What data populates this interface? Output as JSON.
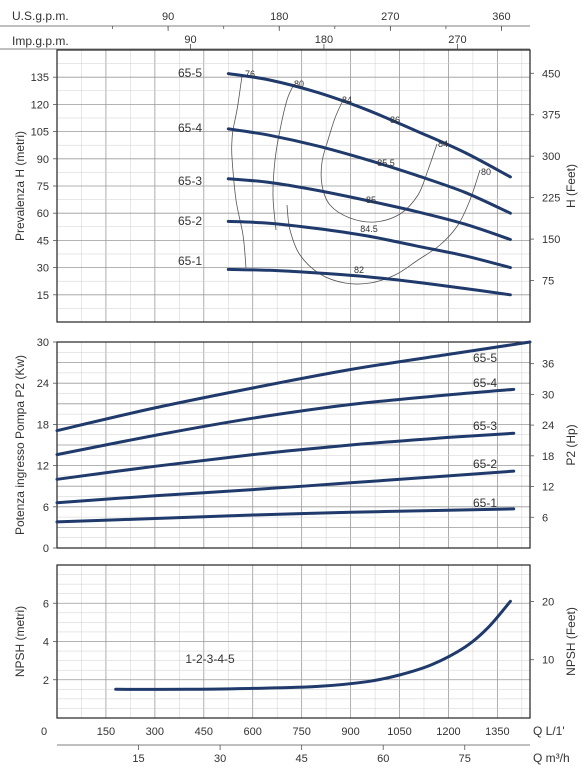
{
  "colors": {
    "curve": "#1f3a6b",
    "grid": "#9a9a9a"
  },
  "top_axes": [
    {
      "label": "U.S.g.p.m.",
      "ticks": [
        90,
        180,
        270,
        360
      ]
    },
    {
      "label": "Imp.g.p.m.",
      "ticks": [
        90,
        180,
        270
      ]
    }
  ],
  "bottom_axes": [
    {
      "label": "Q L/1'",
      "ticks": [
        "0",
        "150",
        "300",
        "450",
        "600",
        "750",
        "900",
        "1050",
        "1200",
        "1350"
      ]
    },
    {
      "label": "Q m³/h",
      "ticks": [
        "15",
        "30",
        "45",
        "60",
        "75"
      ]
    }
  ],
  "chart_data": [
    {
      "type": "line",
      "id": "head",
      "ylabel_left": "Prevalenza H (metri)",
      "ylabel_right": "H (Feet)",
      "xlim": [
        0,
        1450
      ],
      "ylim": [
        0,
        150
      ],
      "yticks_left": [
        "15",
        "30",
        "45",
        "60",
        "75",
        "90",
        "105",
        "120",
        "135"
      ],
      "yticks_right": [
        "75",
        "150",
        "225",
        "300",
        "375",
        "450"
      ],
      "series": [
        {
          "name": "65-1",
          "x": [
            525,
            650,
            800,
            950,
            1100,
            1250,
            1390
          ],
          "y": [
            29,
            28.5,
            27,
            25,
            22,
            18.5,
            15
          ]
        },
        {
          "name": "65-2",
          "x": [
            525,
            650,
            800,
            950,
            1100,
            1250,
            1390
          ],
          "y": [
            55.5,
            54.5,
            51.5,
            47.5,
            42,
            36.5,
            30
          ]
        },
        {
          "name": "65-3",
          "x": [
            525,
            650,
            800,
            950,
            1100,
            1250,
            1390
          ],
          "y": [
            79,
            77,
            72.5,
            67,
            61,
            54,
            45.5
          ]
        },
        {
          "name": "65-4",
          "x": [
            525,
            650,
            800,
            950,
            1100,
            1250,
            1390
          ],
          "y": [
            106.5,
            103,
            97,
            89.5,
            81,
            71.5,
            60
          ]
        },
        {
          "name": "65-5",
          "x": [
            525,
            650,
            800,
            950,
            1100,
            1250,
            1390
          ],
          "y": [
            137,
            133.5,
            126.5,
            117,
            105.5,
            93.5,
            80
          ]
        }
      ],
      "efficiency_labels": [
        "76",
        "80",
        "84",
        "86",
        "84",
        "80",
        "85.5",
        "85",
        "84.5",
        "82"
      ]
    },
    {
      "type": "line",
      "id": "power",
      "ylabel_left": "Potenza ingresso Pompa P2 (Kw)",
      "ylabel_right": "P2 (Hp)",
      "xlim": [
        0,
        1450
      ],
      "ylim": [
        0,
        30
      ],
      "yticks_left": [
        "0",
        "6",
        "12",
        "18",
        "24",
        "30"
      ],
      "yticks_right": [
        "6",
        "12",
        "18",
        "24",
        "30",
        "36"
      ],
      "series": [
        {
          "name": "65-1",
          "x": [
            0,
            300,
            600,
            900,
            1200,
            1400
          ],
          "y": [
            3.8,
            4.3,
            4.8,
            5.2,
            5.5,
            5.7
          ]
        },
        {
          "name": "65-2",
          "x": [
            0,
            300,
            600,
            900,
            1200,
            1400
          ],
          "y": [
            6.6,
            7.6,
            8.5,
            9.5,
            10.5,
            11.2
          ]
        },
        {
          "name": "65-3",
          "x": [
            0,
            300,
            600,
            900,
            1200,
            1400
          ],
          "y": [
            10,
            11.9,
            13.6,
            15,
            16.1,
            16.7
          ]
        },
        {
          "name": "65-4",
          "x": [
            0,
            300,
            600,
            900,
            1200,
            1400
          ],
          "y": [
            13.6,
            16.4,
            18.9,
            20.9,
            22.3,
            23.1
          ]
        },
        {
          "name": "65-5",
          "x": [
            0,
            300,
            600,
            900,
            1200,
            1450
          ],
          "y": [
            17.1,
            20.4,
            23.3,
            26,
            28.2,
            30
          ]
        }
      ]
    },
    {
      "type": "line",
      "id": "npsh",
      "ylabel_left": "NPSH (metri)",
      "ylabel_right": "NPSH (Feet)",
      "xlim": [
        0,
        1450
      ],
      "ylim": [
        0,
        8
      ],
      "yticks_left": [
        "2",
        "4",
        "6"
      ],
      "yticks_right": [
        "10",
        "20"
      ],
      "series": [
        {
          "name": "1-2-3-4-5",
          "x": [
            180,
            400,
            600,
            800,
            950,
            1050,
            1150,
            1250,
            1320,
            1390
          ],
          "y": [
            1.5,
            1.5,
            1.55,
            1.65,
            1.9,
            2.25,
            2.8,
            3.7,
            4.7,
            6.1
          ]
        }
      ]
    }
  ]
}
